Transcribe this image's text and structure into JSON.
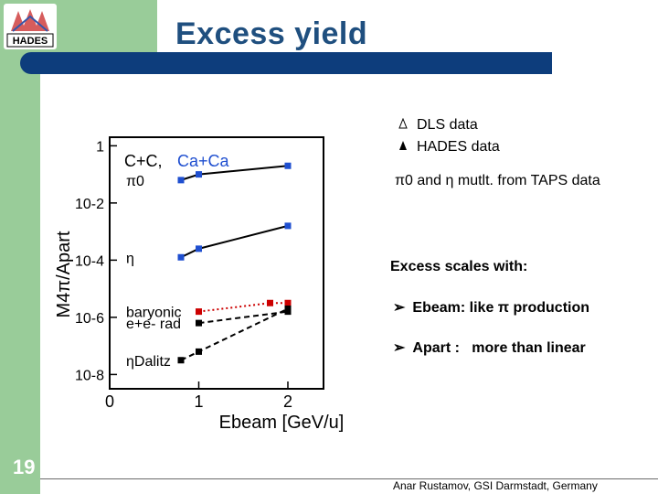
{
  "slide": {
    "title": "Excess yield",
    "number": "19",
    "footer": "Anar Rustamov, GSI Darmstadt, Germany"
  },
  "logo": {
    "text": "HADES"
  },
  "legend": [
    {
      "marker": "open-triangle",
      "label": "DLS data"
    },
    {
      "marker": "filled-triangle",
      "label": "HADES data"
    }
  ],
  "taps_note": "π0 and η mutlt. from TAPS data",
  "excess": {
    "heading": "Excess scales with:",
    "bullets": [
      "Ebeam: like π production",
      "Apart :   more than linear"
    ]
  },
  "chart_data": {
    "type": "scatter",
    "y_axis_label": "M4π/Apart",
    "x_axis_label": "Ebeam [GeV/u]",
    "scale": "log-y",
    "xlim": [
      0,
      2.4
    ],
    "ylim_log10": [
      -8.5,
      0.3
    ],
    "x_ticks": [
      "0",
      "1",
      "2"
    ],
    "y_ticks": [
      "1",
      "10-2",
      "10-4",
      "10-6",
      "10-8"
    ],
    "system_labels": [
      "C+C,",
      "Ca+Ca"
    ],
    "series": [
      {
        "name": "π0",
        "color": "#000000",
        "x": [
          0.8,
          1.0,
          2.0
        ],
        "y_log10": [
          -1.2,
          -1.0,
          -0.7
        ]
      },
      {
        "name": "η",
        "color": "#000000",
        "x": [
          0.8,
          1.0,
          2.0
        ],
        "y_log10": [
          -3.9,
          -3.6,
          -2.8
        ]
      },
      {
        "name": "baryonic",
        "color": "#cc0000",
        "x": [
          1.0,
          1.8,
          2.0
        ],
        "y_log10": [
          -5.8,
          -5.5,
          -5.5
        ]
      },
      {
        "name": "e+e- rad",
        "color": "#000000",
        "x": [
          1.0,
          2.0
        ],
        "y_log10": [
          -6.2,
          -5.8
        ]
      },
      {
        "name": "ηDalitz",
        "color": "#000000",
        "x": [
          0.8,
          1.0,
          2.0
        ],
        "y_log10": [
          -7.5,
          -7.2,
          -5.7
        ]
      }
    ]
  },
  "colors": {
    "accent": "#0d3d7c",
    "green": "#99cc99",
    "title": "#1f4f7f",
    "carbon_series": "#1f4fd0"
  }
}
